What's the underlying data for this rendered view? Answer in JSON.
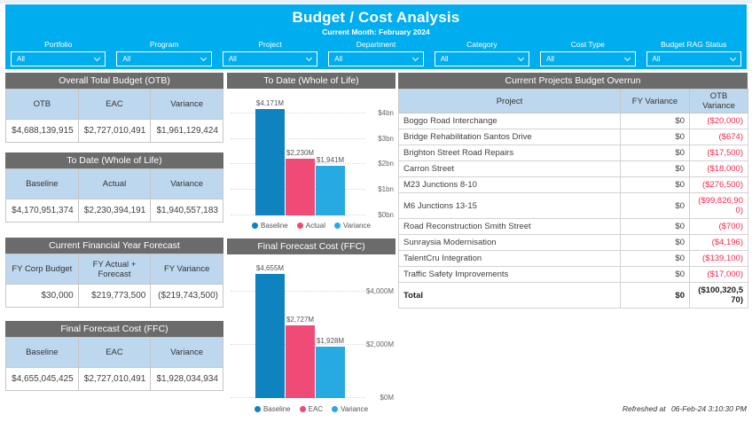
{
  "header": {
    "title": "Budget / Cost Analysis",
    "subtitle": "Current Month: February 2024",
    "filters": [
      {
        "label": "Portfolio",
        "value": "All"
      },
      {
        "label": "Program",
        "value": "All"
      },
      {
        "label": "Project",
        "value": "All"
      },
      {
        "label": "Department",
        "value": "All"
      },
      {
        "label": "Category",
        "value": "All"
      },
      {
        "label": "Cost Type",
        "value": "All"
      },
      {
        "label": "Budget RAG Status",
        "value": "All"
      }
    ]
  },
  "summary_tables": [
    {
      "title": "Overall Total Budget (OTB)",
      "columns": [
        "OTB",
        "EAC",
        "Variance"
      ],
      "values": [
        "$4,688,139,915",
        "$2,727,010,491",
        "$1,961,129,424"
      ],
      "negative": [
        false,
        false,
        false
      ]
    },
    {
      "title": "To Date (Whole of Life)",
      "columns": [
        "Baseline",
        "Actual",
        "Variance"
      ],
      "values": [
        "$4,170,951,374",
        "$2,230,394,191",
        "$1,940,557,183"
      ],
      "negative": [
        false,
        false,
        false
      ]
    },
    {
      "title": "Current Financial Year Forecast",
      "columns": [
        "FY Corp Budget",
        "FY Actual + Forecast",
        "FY Variance"
      ],
      "values": [
        "$30,000",
        "$219,773,500",
        "($219,743,500)"
      ],
      "negative": [
        false,
        false,
        true
      ]
    },
    {
      "title": "Final Forecast Cost (FFC)",
      "columns": [
        "Baseline",
        "EAC",
        "Variance"
      ],
      "values": [
        "$4,655,045,425",
        "$2,727,010,491",
        "$1,928,034,934"
      ],
      "negative": [
        false,
        false,
        false
      ]
    }
  ],
  "chart_data": [
    {
      "type": "bar",
      "title": "To Date (Whole of Life)",
      "categories": [
        "Baseline",
        "Actual",
        "Variance"
      ],
      "values": [
        4171,
        2230,
        1941
      ],
      "data_labels": [
        "$4,171M",
        "$2,230M",
        "$1,941M"
      ],
      "yticks": [
        {
          "value": 0,
          "label": "$0bn"
        },
        {
          "value": 1000,
          "label": "$1bn"
        },
        {
          "value": 2000,
          "label": "$2bn"
        },
        {
          "value": 3000,
          "label": "$3bn"
        },
        {
          "value": 4000,
          "label": "$4bn"
        }
      ],
      "ylim": [
        0,
        4171
      ],
      "grid": true,
      "legend": [
        "Baseline",
        "Actual",
        "Variance"
      ],
      "legend_position": "bottom",
      "colors": [
        "#0E83BF",
        "#F04A77",
        "#27AAE1"
      ]
    },
    {
      "type": "bar",
      "title": "Final Forecast Cost (FFC)",
      "categories": [
        "Baseline",
        "EAC",
        "Variance"
      ],
      "values": [
        4655,
        2727,
        1928
      ],
      "data_labels": [
        "$4,655M",
        "$2,727M",
        "$1,928M"
      ],
      "yticks": [
        {
          "value": 0,
          "label": "$0M"
        },
        {
          "value": 2000,
          "label": "$2,000M"
        },
        {
          "value": 4000,
          "label": "$4,000M"
        }
      ],
      "ylim": [
        0,
        4655
      ],
      "grid": true,
      "legend": [
        "Baseline",
        "EAC",
        "Variance"
      ],
      "legend_position": "bottom",
      "colors": [
        "#0E83BF",
        "#F04A77",
        "#27AAE1"
      ]
    }
  ],
  "overrun_table": {
    "title": "Current Projects Budget Overrun",
    "columns": [
      "Project",
      "FY Variance",
      "OTB Variance"
    ],
    "rows": [
      {
        "project": "Boggo Road Interchange",
        "fy_variance": "$0",
        "otb_variance": "($20,000)"
      },
      {
        "project": "Bridge Rehabilitation Santos Drive",
        "fy_variance": "$0",
        "otb_variance": "($674)"
      },
      {
        "project": "Brighton Street Road Repairs",
        "fy_variance": "$0",
        "otb_variance": "($17,500)"
      },
      {
        "project": "Carron Street",
        "fy_variance": "$0",
        "otb_variance": "($18,000)"
      },
      {
        "project": "M23 Junctions 8-10",
        "fy_variance": "$0",
        "otb_variance": "($276,500)"
      },
      {
        "project": "M6 Junctions 13-15",
        "fy_variance": "$0",
        "otb_variance": "($99,826,900)"
      },
      {
        "project": "Road Reconstruction Smith Street",
        "fy_variance": "$0",
        "otb_variance": "($700)"
      },
      {
        "project": "Sunraysia Modernisation",
        "fy_variance": "$0",
        "otb_variance": "($4,196)"
      },
      {
        "project": "TalentCru Integration",
        "fy_variance": "$0",
        "otb_variance": "($139,100)"
      },
      {
        "project": "Traffic Safety Improvements",
        "fy_variance": "$0",
        "otb_variance": "($17,000)"
      }
    ],
    "total": {
      "project": "Total",
      "fy_variance": "$0",
      "otb_variance": "($100,320,570)"
    }
  },
  "footer": {
    "refreshed_label": "Refreshed at",
    "refreshed_value": "06-Feb-24 3:10:30 PM"
  },
  "colors": {
    "accent": "#00AEEF",
    "panel_header_bg": "#6B6B6B",
    "column_header_bg": "#BDD7EE",
    "negative_text": "#F8274E",
    "series_baseline": "#0E83BF",
    "series_pink": "#F04A77",
    "series_cyan": "#27AAE1"
  }
}
